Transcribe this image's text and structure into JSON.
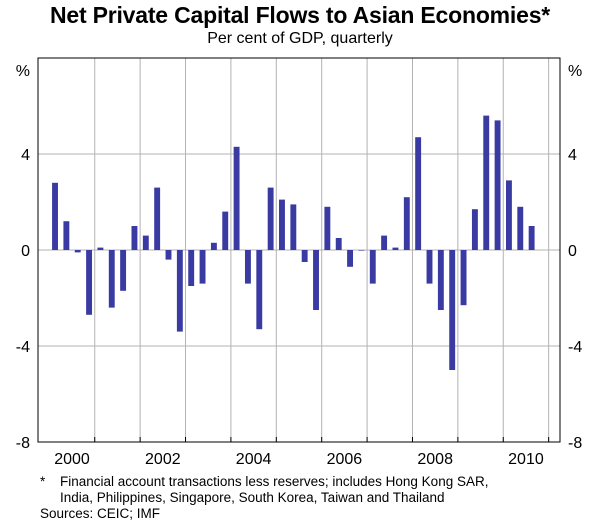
{
  "chart_data": {
    "type": "bar",
    "title": "Net Private Capital Flows to Asian Economies*",
    "subtitle": "Per cent of GDP, quarterly",
    "ylabel_left": "%",
    "ylabel_right": "%",
    "ylim": [
      -8,
      8
    ],
    "yticks": [
      {
        "value": 4,
        "label": "4"
      },
      {
        "value": 0,
        "label": "0"
      },
      {
        "value": -4,
        "label": "-4"
      },
      {
        "value": -8,
        "label": "-8"
      }
    ],
    "xlim": [
      1999.75,
      2011.25
    ],
    "year_boundaries": [
      2001,
      2002,
      2003,
      2004,
      2005,
      2006,
      2007,
      2008,
      2009,
      2010,
      2011
    ],
    "xtick_labels": [
      {
        "year": 2000,
        "label": "2000"
      },
      {
        "year": 2002,
        "label": "2002"
      },
      {
        "year": 2004,
        "label": "2004"
      },
      {
        "year": 2006,
        "label": "2006"
      },
      {
        "year": 2008,
        "label": "2008"
      },
      {
        "year": 2010,
        "label": "2010"
      }
    ],
    "first_quarter": "2000Q1",
    "bar_color": "#3a3aa3",
    "series": [
      {
        "name": "Net private capital flows",
        "values": [
          2.8,
          1.2,
          -0.1,
          -2.7,
          0.1,
          -2.4,
          -1.7,
          1.0,
          0.6,
          2.6,
          -0.4,
          -3.4,
          -1.5,
          -1.4,
          0.3,
          1.6,
          4.3,
          -1.4,
          -3.3,
          2.6,
          2.1,
          1.9,
          -0.5,
          -2.5,
          1.8,
          0.5,
          -0.7,
          0.0,
          -1.4,
          0.6,
          0.1,
          2.2,
          4.7,
          -1.4,
          -2.5,
          -5.0,
          -2.3,
          1.7,
          5.6,
          5.4,
          2.9,
          1.8,
          1.0
        ]
      }
    ]
  },
  "footnote_marker": "*",
  "footnote_line1": "Financial account transactions less reserves; includes Hong Kong SAR,",
  "footnote_line2": "India, Philippines, Singapore, South Korea, Taiwan and Thailand",
  "sources": "Sources: CEIC; IMF"
}
